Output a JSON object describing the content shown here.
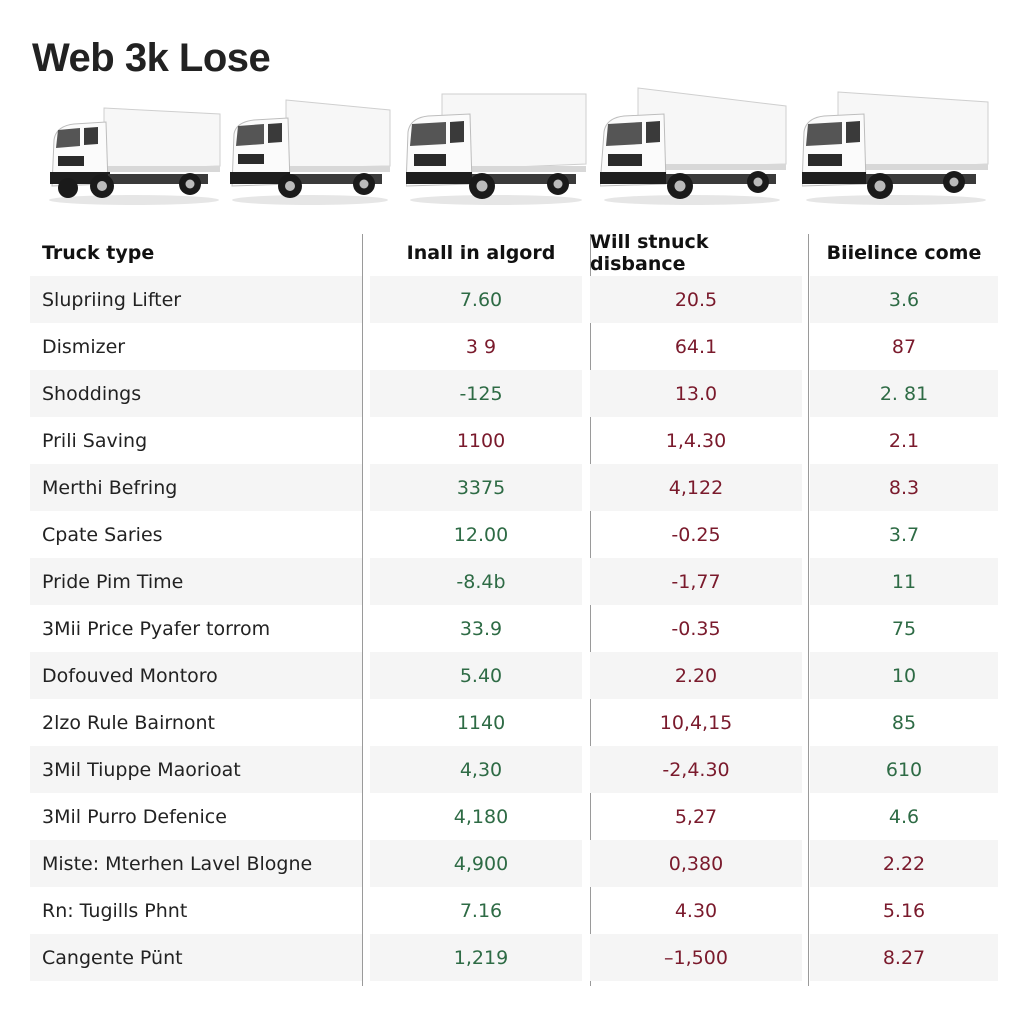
{
  "page": {
    "title": "Web 3k Lose"
  },
  "gallery": {
    "images": [
      {
        "icon": "box-truck-image",
        "label": "truck-1"
      },
      {
        "icon": "box-truck-image",
        "label": "truck-2"
      },
      {
        "icon": "box-truck-image",
        "label": "truck-3"
      },
      {
        "icon": "box-truck-image",
        "label": "truck-4"
      },
      {
        "icon": "box-truck-image",
        "label": "truck-5"
      }
    ]
  },
  "colors": {
    "positive": "#2e6b45",
    "negative": "#7a1a2c",
    "row_shade": "#f5f5f5",
    "divider": "#9a9a9a"
  },
  "table": {
    "headers": [
      "Truck type",
      "Inall in algord",
      "Will stnuck disbance",
      "Biielince come"
    ],
    "rows": [
      {
        "name": "Slupriing Lifter",
        "v1": "7.60",
        "v1c": "green",
        "v2": "20.5",
        "v2c": "red",
        "v3": "3.6",
        "v3c": "green"
      },
      {
        "name": "Dismizer",
        "v1": "3 9",
        "v1c": "red",
        "v2": "64.1",
        "v2c": "red",
        "v3": "87",
        "v3c": "red"
      },
      {
        "name": "Shoddings",
        "v1": "-125",
        "v1c": "green",
        "v2": "13.0",
        "v2c": "red",
        "v3": "2. 81",
        "v3c": "green"
      },
      {
        "name": "Prili Saving",
        "v1": "1100",
        "v1c": "red",
        "v2": "1,4.30",
        "v2c": "red",
        "v3": "2.1",
        "v3c": "red"
      },
      {
        "name": "Merthi Befring",
        "v1": "3375",
        "v1c": "green",
        "v2": "4,122",
        "v2c": "red",
        "v3": "8.3",
        "v3c": "red"
      },
      {
        "name": "Cpate Saries",
        "v1": "12.00",
        "v1c": "green",
        "v2": "-0.25",
        "v2c": "red",
        "v3": "3.7",
        "v3c": "green"
      },
      {
        "name": "Pride Pim Time",
        "v1": "-8.4b",
        "v1c": "green",
        "v2": "-1,77",
        "v2c": "red",
        "v3": "11",
        "v3c": "green"
      },
      {
        "name": "3Mii Price Pyafer torrom",
        "v1": "33.9",
        "v1c": "green",
        "v2": "-0.35",
        "v2c": "red",
        "v3": "75",
        "v3c": "green"
      },
      {
        "name": "Dofouved Montoro",
        "v1": "5.40",
        "v1c": "green",
        "v2": "2.20",
        "v2c": "red",
        "v3": "10",
        "v3c": "green"
      },
      {
        "name": "2lzo Rule Bairnont",
        "v1": "1140",
        "v1c": "green",
        "v2": "10,4,15",
        "v2c": "red",
        "v3": "85",
        "v3c": "green"
      },
      {
        "name": "3Mil Tiuppe Maorioat",
        "v1": "4,30",
        "v1c": "green",
        "v2": "-2,4.30",
        "v2c": "red",
        "v3": "610",
        "v3c": "green"
      },
      {
        "name": "3Mil Purro Defenice",
        "v1": "4,180",
        "v1c": "green",
        "v2": "5,27",
        "v2c": "red",
        "v3": "4.6",
        "v3c": "green"
      },
      {
        "name": "Miste: Mterhen Lavel Blogne",
        "v1": "4,900",
        "v1c": "green",
        "v2": "0,380",
        "v2c": "red",
        "v3": "2.22",
        "v3c": "red"
      },
      {
        "name": "Rn: Tugills Phnt",
        "v1": "7.16",
        "v1c": "green",
        "v2": "4.30",
        "v2c": "red",
        "v3": "5.16",
        "v3c": "red"
      },
      {
        "name": "Cangente Pünt",
        "v1": "1,219",
        "v1c": "green",
        "v2": "–1,500",
        "v2c": "red",
        "v3": "8.27",
        "v3c": "red"
      }
    ]
  }
}
